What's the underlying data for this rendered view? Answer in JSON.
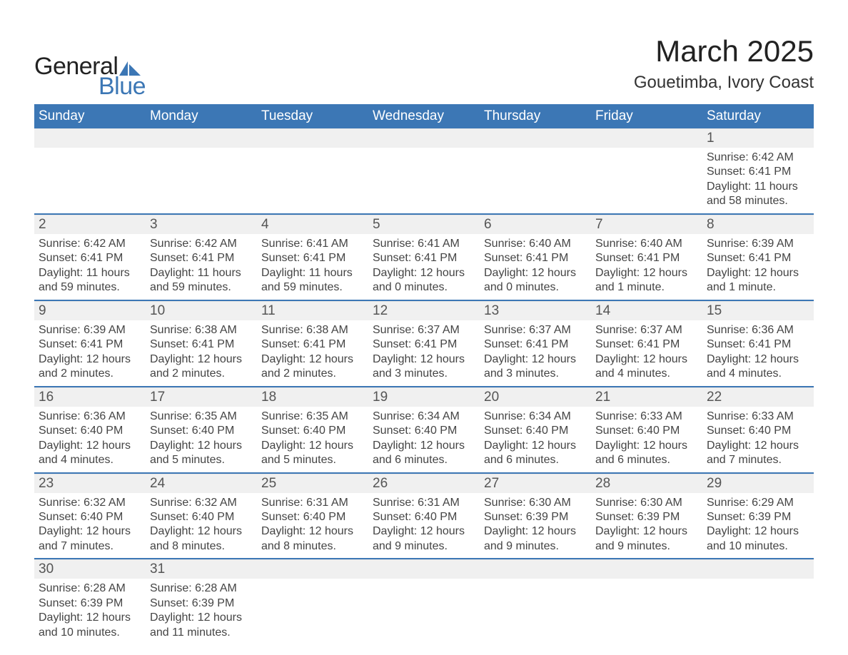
{
  "logo": {
    "text_general": "General",
    "text_blue": "Blue"
  },
  "title": "March 2025",
  "subtitle": "Gouetimba, Ivory Coast",
  "colors": {
    "header_bg": "#3c77b5",
    "header_text": "#ffffff",
    "daynum_bg": "#f0f0f0",
    "row_border": "#3c77b5",
    "body_text": "#444444",
    "title_text": "#222222"
  },
  "typography": {
    "title_fontsize": 42,
    "subtitle_fontsize": 24,
    "header_fontsize": 19,
    "daynum_fontsize": 19,
    "cell_fontsize": 16,
    "logo_fontsize": 34
  },
  "calendar": {
    "type": "table",
    "columns": [
      "Sunday",
      "Monday",
      "Tuesday",
      "Wednesday",
      "Thursday",
      "Friday",
      "Saturday"
    ],
    "weeks": [
      [
        null,
        null,
        null,
        null,
        null,
        null,
        {
          "day": "1",
          "sunrise": "Sunrise: 6:42 AM",
          "sunset": "Sunset: 6:41 PM",
          "daylight": "Daylight: 11 hours and 58 minutes."
        }
      ],
      [
        {
          "day": "2",
          "sunrise": "Sunrise: 6:42 AM",
          "sunset": "Sunset: 6:41 PM",
          "daylight": "Daylight: 11 hours and 59 minutes."
        },
        {
          "day": "3",
          "sunrise": "Sunrise: 6:42 AM",
          "sunset": "Sunset: 6:41 PM",
          "daylight": "Daylight: 11 hours and 59 minutes."
        },
        {
          "day": "4",
          "sunrise": "Sunrise: 6:41 AM",
          "sunset": "Sunset: 6:41 PM",
          "daylight": "Daylight: 11 hours and 59 minutes."
        },
        {
          "day": "5",
          "sunrise": "Sunrise: 6:41 AM",
          "sunset": "Sunset: 6:41 PM",
          "daylight": "Daylight: 12 hours and 0 minutes."
        },
        {
          "day": "6",
          "sunrise": "Sunrise: 6:40 AM",
          "sunset": "Sunset: 6:41 PM",
          "daylight": "Daylight: 12 hours and 0 minutes."
        },
        {
          "day": "7",
          "sunrise": "Sunrise: 6:40 AM",
          "sunset": "Sunset: 6:41 PM",
          "daylight": "Daylight: 12 hours and 1 minute."
        },
        {
          "day": "8",
          "sunrise": "Sunrise: 6:39 AM",
          "sunset": "Sunset: 6:41 PM",
          "daylight": "Daylight: 12 hours and 1 minute."
        }
      ],
      [
        {
          "day": "9",
          "sunrise": "Sunrise: 6:39 AM",
          "sunset": "Sunset: 6:41 PM",
          "daylight": "Daylight: 12 hours and 2 minutes."
        },
        {
          "day": "10",
          "sunrise": "Sunrise: 6:38 AM",
          "sunset": "Sunset: 6:41 PM",
          "daylight": "Daylight: 12 hours and 2 minutes."
        },
        {
          "day": "11",
          "sunrise": "Sunrise: 6:38 AM",
          "sunset": "Sunset: 6:41 PM",
          "daylight": "Daylight: 12 hours and 2 minutes."
        },
        {
          "day": "12",
          "sunrise": "Sunrise: 6:37 AM",
          "sunset": "Sunset: 6:41 PM",
          "daylight": "Daylight: 12 hours and 3 minutes."
        },
        {
          "day": "13",
          "sunrise": "Sunrise: 6:37 AM",
          "sunset": "Sunset: 6:41 PM",
          "daylight": "Daylight: 12 hours and 3 minutes."
        },
        {
          "day": "14",
          "sunrise": "Sunrise: 6:37 AM",
          "sunset": "Sunset: 6:41 PM",
          "daylight": "Daylight: 12 hours and 4 minutes."
        },
        {
          "day": "15",
          "sunrise": "Sunrise: 6:36 AM",
          "sunset": "Sunset: 6:41 PM",
          "daylight": "Daylight: 12 hours and 4 minutes."
        }
      ],
      [
        {
          "day": "16",
          "sunrise": "Sunrise: 6:36 AM",
          "sunset": "Sunset: 6:40 PM",
          "daylight": "Daylight: 12 hours and 4 minutes."
        },
        {
          "day": "17",
          "sunrise": "Sunrise: 6:35 AM",
          "sunset": "Sunset: 6:40 PM",
          "daylight": "Daylight: 12 hours and 5 minutes."
        },
        {
          "day": "18",
          "sunrise": "Sunrise: 6:35 AM",
          "sunset": "Sunset: 6:40 PM",
          "daylight": "Daylight: 12 hours and 5 minutes."
        },
        {
          "day": "19",
          "sunrise": "Sunrise: 6:34 AM",
          "sunset": "Sunset: 6:40 PM",
          "daylight": "Daylight: 12 hours and 6 minutes."
        },
        {
          "day": "20",
          "sunrise": "Sunrise: 6:34 AM",
          "sunset": "Sunset: 6:40 PM",
          "daylight": "Daylight: 12 hours and 6 minutes."
        },
        {
          "day": "21",
          "sunrise": "Sunrise: 6:33 AM",
          "sunset": "Sunset: 6:40 PM",
          "daylight": "Daylight: 12 hours and 6 minutes."
        },
        {
          "day": "22",
          "sunrise": "Sunrise: 6:33 AM",
          "sunset": "Sunset: 6:40 PM",
          "daylight": "Daylight: 12 hours and 7 minutes."
        }
      ],
      [
        {
          "day": "23",
          "sunrise": "Sunrise: 6:32 AM",
          "sunset": "Sunset: 6:40 PM",
          "daylight": "Daylight: 12 hours and 7 minutes."
        },
        {
          "day": "24",
          "sunrise": "Sunrise: 6:32 AM",
          "sunset": "Sunset: 6:40 PM",
          "daylight": "Daylight: 12 hours and 8 minutes."
        },
        {
          "day": "25",
          "sunrise": "Sunrise: 6:31 AM",
          "sunset": "Sunset: 6:40 PM",
          "daylight": "Daylight: 12 hours and 8 minutes."
        },
        {
          "day": "26",
          "sunrise": "Sunrise: 6:31 AM",
          "sunset": "Sunset: 6:40 PM",
          "daylight": "Daylight: 12 hours and 9 minutes."
        },
        {
          "day": "27",
          "sunrise": "Sunrise: 6:30 AM",
          "sunset": "Sunset: 6:39 PM",
          "daylight": "Daylight: 12 hours and 9 minutes."
        },
        {
          "day": "28",
          "sunrise": "Sunrise: 6:30 AM",
          "sunset": "Sunset: 6:39 PM",
          "daylight": "Daylight: 12 hours and 9 minutes."
        },
        {
          "day": "29",
          "sunrise": "Sunrise: 6:29 AM",
          "sunset": "Sunset: 6:39 PM",
          "daylight": "Daylight: 12 hours and 10 minutes."
        }
      ],
      [
        {
          "day": "30",
          "sunrise": "Sunrise: 6:28 AM",
          "sunset": "Sunset: 6:39 PM",
          "daylight": "Daylight: 12 hours and 10 minutes."
        },
        {
          "day": "31",
          "sunrise": "Sunrise: 6:28 AM",
          "sunset": "Sunset: 6:39 PM",
          "daylight": "Daylight: 12 hours and 11 minutes."
        },
        null,
        null,
        null,
        null,
        null
      ]
    ]
  }
}
